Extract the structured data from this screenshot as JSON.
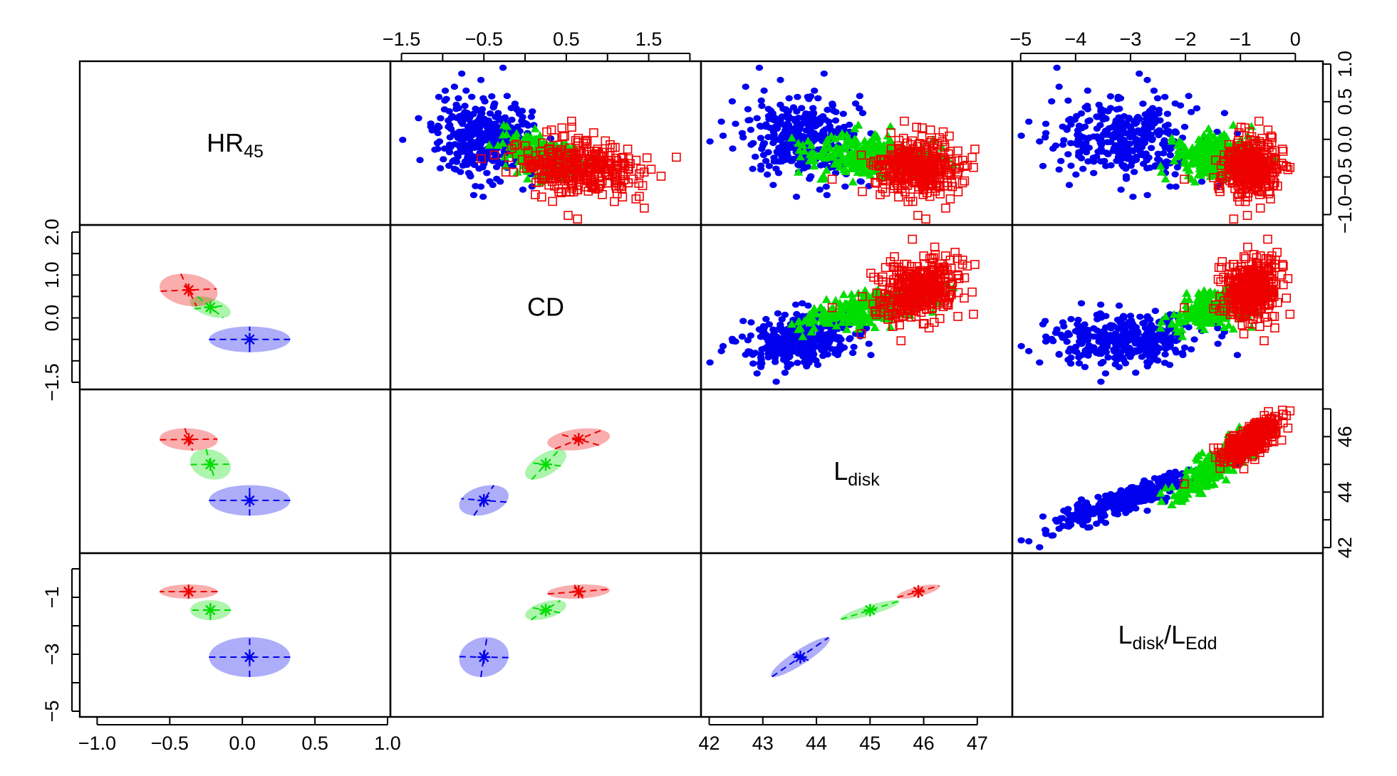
{
  "chart_data": {
    "type": "scatter",
    "title": "",
    "layout": "4x4 scatter-plot matrix; upper triangle: scatter points, lower triangle: group ellipses with means, diagonal: variable names",
    "variables": [
      {
        "id": "hr45",
        "label": "HR",
        "subscript": "45",
        "range": [
          -1.1,
          1.0
        ]
      },
      {
        "id": "cd",
        "label": "CD",
        "subscript": "",
        "range": [
          -1.6,
          2.1
        ]
      },
      {
        "id": "ldisk",
        "label": "L",
        "subscript": "disk",
        "range": [
          41.9,
          47.6
        ]
      },
      {
        "id": "ledd",
        "label": "L",
        "subscript": "disk",
        "label_sep": "/",
        "label2": "L",
        "subscript2": "Edd",
        "range": [
          -5.1,
          0.45
        ]
      }
    ],
    "axes": {
      "top": [
        {
          "column": 1,
          "ticks": [
            -1.5,
            -0.5,
            0.5,
            1.5
          ],
          "tick_labels": [
            "−1.5",
            "−0.5",
            "0.5",
            "1.5"
          ],
          "minor_ticks": [
            -1.0,
            0.0,
            1.0,
            2.0
          ]
        },
        {
          "column": 3,
          "ticks": [
            -5,
            -4,
            -3,
            -2,
            -1,
            0
          ],
          "tick_labels": [
            "−5",
            "−4",
            "−3",
            "−2",
            "−1",
            "0"
          ]
        }
      ],
      "right": [
        {
          "row": 0,
          "ticks": [
            -1.0,
            -0.5,
            0.0,
            0.5,
            1.0
          ],
          "tick_labels": [
            "−1.0",
            "−0.5",
            "0.0",
            "0.5",
            "1.0"
          ]
        },
        {
          "row": 2,
          "ticks": [
            42,
            43,
            44,
            45,
            46,
            47
          ],
          "tick_labels": [
            "42",
            "",
            "44",
            "",
            "46",
            ""
          ]
        }
      ],
      "left": [
        {
          "row": 1,
          "ticks": [
            -1.5,
            -1.0,
            -0.5,
            0.0,
            0.5,
            1.0,
            1.5,
            2.0
          ],
          "tick_labels": [
            "−1.5",
            "",
            "",
            "0.0",
            "",
            "1.0",
            "",
            "2.0"
          ]
        },
        {
          "row": 3,
          "ticks": [
            -5,
            -4,
            -3,
            -2,
            -1,
            0
          ],
          "tick_labels": [
            "−5",
            "",
            "−3",
            "",
            "−1",
            ""
          ]
        }
      ],
      "bottom": [
        {
          "column": 0,
          "ticks": [
            -1.0,
            -0.5,
            0.0,
            0.5,
            1.0
          ],
          "tick_labels": [
            "−1.0",
            "−0.5",
            "0.0",
            "0.5",
            "1.0"
          ]
        },
        {
          "column": 2,
          "ticks": [
            42,
            43,
            44,
            45,
            46,
            47
          ],
          "tick_labels": [
            "42",
            "43",
            "44",
            "45",
            "46",
            "47"
          ]
        }
      ]
    },
    "groups": [
      {
        "name": "blue",
        "marker": "filled circle",
        "color": "#0000ee",
        "means": {
          "hr45": 0.05,
          "cd": -0.5,
          "ldisk": 43.7,
          "ledd": -3.1
        },
        "sds": {
          "hr45": 0.28,
          "cd": 0.3,
          "ldisk": 0.55,
          "ledd": 0.7
        },
        "correlations": {
          "hr45_cd": 0.0,
          "hr45_ldisk": 0.0,
          "hr45_ledd": 0.0,
          "cd_ldisk": 0.3,
          "cd_ledd": 0.1,
          "ldisk_ledd": 0.9
        }
      },
      {
        "name": "green",
        "marker": "filled triangle",
        "color": "#00dd00",
        "means": {
          "hr45": -0.22,
          "cd": 0.25,
          "ldisk": 45.0,
          "ledd": -1.45
        },
        "sds": {
          "hr45": 0.14,
          "cd": 0.25,
          "ldisk": 0.55,
          "ledd": 0.35
        },
        "correlations": {
          "hr45_cd": -0.5,
          "hr45_ldisk": -0.2,
          "hr45_ledd": 0.0,
          "cd_ldisk": 0.6,
          "cd_ledd": 0.5,
          "ldisk_ledd": 0.85
        }
      },
      {
        "name": "red",
        "marker": "open square",
        "color": "#ee0000",
        "means": {
          "hr45": -0.37,
          "cd": 0.65,
          "ldisk": 45.9,
          "ledd": -0.8
        },
        "sds": {
          "hr45": 0.2,
          "cd": 0.38,
          "ldisk": 0.4,
          "ledd": 0.25
        },
        "correlations": {
          "hr45_cd": -0.2,
          "hr45_ldisk": -0.1,
          "hr45_ledd": 0.0,
          "cd_ldisk": 0.3,
          "cd_ledd": 0.2,
          "ldisk_ledd": 0.7
        }
      }
    ]
  }
}
